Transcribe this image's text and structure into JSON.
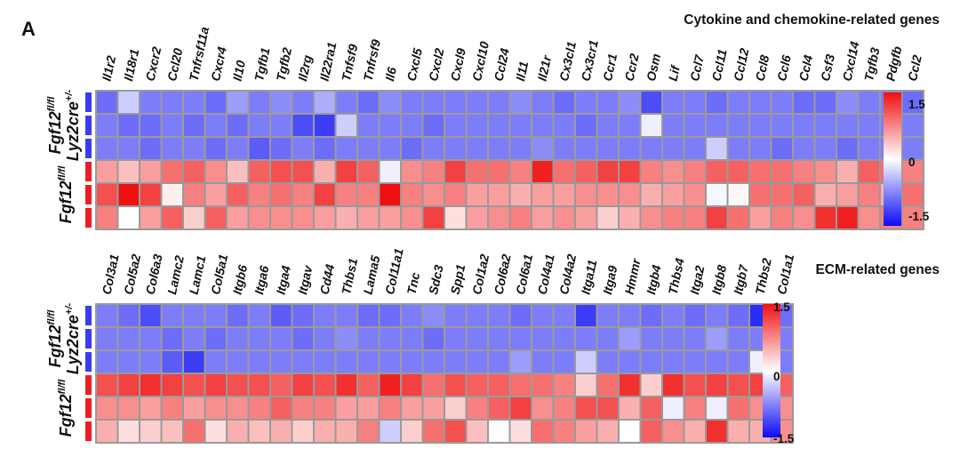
{
  "panel_label": "A",
  "genotypes": {
    "ko_main": "Fgf12",
    "ko_sup": "fl/fl",
    "ko_line2_main": "Lyz2cre",
    "ko_line2_sup": "+/-",
    "wt_main": "Fgf12",
    "wt_sup": "fl/fl"
  },
  "group_colors": {
    "ko": "#3b3bf2",
    "wt": "#ee1c25"
  },
  "colorscale": {
    "low": "#0b0bf5",
    "mid": "#ffffff",
    "high": "#f01010",
    "min": -1.5,
    "max": 1.5,
    "ticks": [
      "1.5",
      "0",
      "-1.5"
    ]
  },
  "chart_data": [
    {
      "type": "heatmap",
      "title": "Cytokine and chemokine-related genes",
      "genes": [
        "Il1r2",
        "Il18r1",
        "Cxcr2",
        "Ccl20",
        "Tnfrsf11a",
        "Cxcr4",
        "Il10",
        "Tgfb1",
        "Tgfb2",
        "Il2rg",
        "Il22ra1",
        "Tnfsf9",
        "Tnfrsf9",
        "Il6",
        "Cxcl5",
        "Cxcl2",
        "Cxcl9",
        "Cxcl10",
        "Ccl24",
        "Il11",
        "Il21r",
        "Cx3cl1",
        "Cx3cr1",
        "Ccr1",
        "Ccr2",
        "Osm",
        "Lif",
        "Ccl7",
        "Ccl11",
        "Ccl12",
        "Ccl8",
        "Ccl6",
        "Ccl4",
        "Csf3",
        "Cxcl14",
        "Tgfb3",
        "Pdgfb",
        "Ccl2"
      ],
      "row_groups": [
        "ko",
        "ko",
        "ko",
        "wt",
        "wt",
        "wt"
      ],
      "values": [
        [
          -0.9,
          -0.3,
          -0.8,
          -0.8,
          -0.8,
          -0.9,
          -0.6,
          -0.8,
          -0.7,
          -0.8,
          -0.5,
          -0.8,
          -0.9,
          -0.7,
          -0.8,
          -0.8,
          -0.8,
          -0.8,
          -0.8,
          -0.7,
          -0.8,
          -0.9,
          -0.8,
          -0.8,
          -0.7,
          -1.1,
          -0.8,
          -0.8,
          -0.9,
          -0.8,
          -0.8,
          -0.8,
          -0.9,
          -0.9,
          -0.7,
          -0.8,
          -0.8,
          -0.9
        ],
        [
          -0.8,
          -0.9,
          -0.9,
          -0.8,
          -0.9,
          -0.8,
          -0.9,
          -0.8,
          -0.8,
          -1.1,
          -1.2,
          -0.3,
          -0.8,
          -0.8,
          -0.8,
          -0.9,
          -0.8,
          -0.8,
          -0.8,
          -0.8,
          -0.8,
          -0.8,
          -0.9,
          -0.8,
          -0.8,
          -0.1,
          -0.8,
          -0.8,
          -0.8,
          -0.8,
          -0.8,
          -0.8,
          -0.8,
          -0.8,
          -0.8,
          -0.8,
          -0.8,
          -0.8
        ],
        [
          -0.8,
          -0.8,
          -0.9,
          -0.8,
          -0.8,
          -0.9,
          -0.8,
          -1.0,
          -0.9,
          -0.8,
          -0.9,
          -0.8,
          -0.8,
          -0.8,
          -0.9,
          -0.8,
          -0.8,
          -0.8,
          -0.8,
          -0.8,
          -0.7,
          -0.8,
          -0.8,
          -0.8,
          -0.8,
          -0.8,
          -0.8,
          -0.8,
          -0.3,
          -0.8,
          -0.8,
          -0.9,
          -0.8,
          -0.8,
          -0.9,
          -0.8,
          -0.8,
          -0.8
        ],
        [
          0.6,
          0.4,
          0.6,
          0.9,
          1.0,
          0.7,
          0.4,
          1.0,
          1.1,
          1.1,
          0.5,
          1.2,
          1.0,
          -0.1,
          0.7,
          0.8,
          1.2,
          0.9,
          0.9,
          0.8,
          1.4,
          0.9,
          1.0,
          1.2,
          1.2,
          0.8,
          0.7,
          0.8,
          1.0,
          1.0,
          0.9,
          0.9,
          0.8,
          0.7,
          0.5,
          1.0,
          0.9,
          0.8
        ],
        [
          1.1,
          1.6,
          1.2,
          0.1,
          0.8,
          0.6,
          1.0,
          0.8,
          0.9,
          0.8,
          1.2,
          0.8,
          0.8,
          1.5,
          0.8,
          0.7,
          0.8,
          0.6,
          0.6,
          0.5,
          0.6,
          0.6,
          0.7,
          0.7,
          0.7,
          0.5,
          0.6,
          0.7,
          -0.05,
          0.05,
          0.9,
          0.9,
          1.0,
          0.5,
          0.6,
          0.8,
          0.5,
          0.9
        ],
        [
          0.8,
          0.02,
          0.6,
          1.0,
          0.3,
          1.0,
          0.6,
          0.7,
          0.7,
          0.7,
          0.6,
          0.5,
          0.6,
          0.6,
          0.7,
          1.2,
          0.2,
          0.6,
          0.7,
          0.8,
          0.6,
          0.7,
          0.6,
          0.3,
          0.5,
          0.7,
          0.8,
          0.8,
          1.2,
          0.9,
          0.6,
          0.8,
          0.7,
          1.3,
          1.4,
          0.7,
          0.8,
          0.8
        ]
      ]
    },
    {
      "type": "heatmap",
      "title": "ECM-related genes",
      "genes": [
        "Col3a1",
        "Col5a2",
        "Col6a3",
        "Lamc2",
        "Lamc1",
        "Col5a1",
        "Itgb6",
        "Itga6",
        "Itga4",
        "Itgav",
        "Cd44",
        "Thbs1",
        "Lama5",
        "Col11a1",
        "Tnc",
        "Sdc3",
        "Spp1",
        "Col1a2",
        "Col6a2",
        "Col6a1",
        "Col4a1",
        "Col4a2",
        "Itga11",
        "Itga9",
        "Hmmr",
        "Itgb4",
        "Thbs4",
        "Itga2",
        "Itgb8",
        "Itgb7",
        "Thbs2",
        "Col1a1"
      ],
      "row_groups": [
        "ko",
        "ko",
        "ko",
        "wt",
        "wt",
        "wt"
      ],
      "values": [
        [
          -0.8,
          -0.9,
          -1.1,
          -0.8,
          -0.8,
          -0.8,
          -0.9,
          -0.8,
          -1.0,
          -0.9,
          -0.8,
          -0.8,
          -0.9,
          -0.9,
          -0.8,
          -0.7,
          -0.8,
          -0.8,
          -0.8,
          -0.9,
          -0.8,
          -0.8,
          -1.2,
          -0.8,
          -0.8,
          -0.9,
          -0.8,
          -0.9,
          -0.8,
          -0.9,
          -1.3,
          -0.9
        ],
        [
          -0.8,
          -0.8,
          -0.8,
          -0.9,
          -0.8,
          -0.9,
          -0.8,
          -0.8,
          -0.8,
          -0.9,
          -0.8,
          -0.7,
          -0.8,
          -0.8,
          -0.8,
          -0.9,
          -0.8,
          -0.8,
          -0.8,
          -0.8,
          -0.8,
          -0.8,
          -0.8,
          -0.8,
          -0.6,
          -0.8,
          -0.8,
          -0.8,
          -0.6,
          -0.8,
          -0.8,
          -0.8
        ],
        [
          -0.8,
          -0.8,
          -0.8,
          -1.0,
          -1.2,
          -0.8,
          -0.8,
          -0.8,
          -0.8,
          -0.8,
          -0.8,
          -0.8,
          -0.8,
          -0.8,
          -0.8,
          -0.8,
          -0.8,
          -0.8,
          -0.8,
          -0.6,
          -0.8,
          -0.8,
          -0.3,
          -0.8,
          -0.8,
          -0.8,
          -0.8,
          -0.8,
          -0.8,
          -0.8,
          -0.1,
          -0.8
        ],
        [
          1.1,
          1.2,
          1.3,
          1.2,
          1.1,
          1.2,
          1.1,
          1.1,
          1.0,
          1.2,
          1.1,
          1.3,
          1.0,
          1.4,
          1.2,
          0.9,
          1.1,
          1.0,
          1.0,
          0.9,
          0.9,
          0.8,
          0.3,
          0.9,
          1.3,
          0.3,
          1.3,
          1.1,
          1.2,
          1.1,
          1.2,
          1.0
        ],
        [
          0.7,
          0.7,
          0.6,
          0.8,
          0.6,
          0.7,
          0.7,
          0.8,
          1.0,
          0.8,
          0.8,
          0.6,
          0.6,
          0.8,
          0.6,
          0.6,
          0.3,
          0.8,
          1.0,
          1.2,
          0.7,
          0.8,
          1.1,
          1.1,
          0.5,
          1.0,
          -0.1,
          0.8,
          -0.1,
          0.9,
          0.7,
          0.7
        ],
        [
          0.5,
          0.2,
          0.3,
          0.4,
          0.9,
          0.2,
          0.5,
          0.4,
          0.5,
          0.3,
          0.5,
          0.5,
          0.8,
          -0.3,
          0.3,
          0.9,
          1.1,
          0.4,
          0.02,
          0.2,
          0.9,
          0.8,
          0.6,
          0.5,
          0.0,
          1.0,
          0.7,
          0.5,
          1.3,
          0.5,
          0.5,
          0.7
        ]
      ]
    }
  ]
}
